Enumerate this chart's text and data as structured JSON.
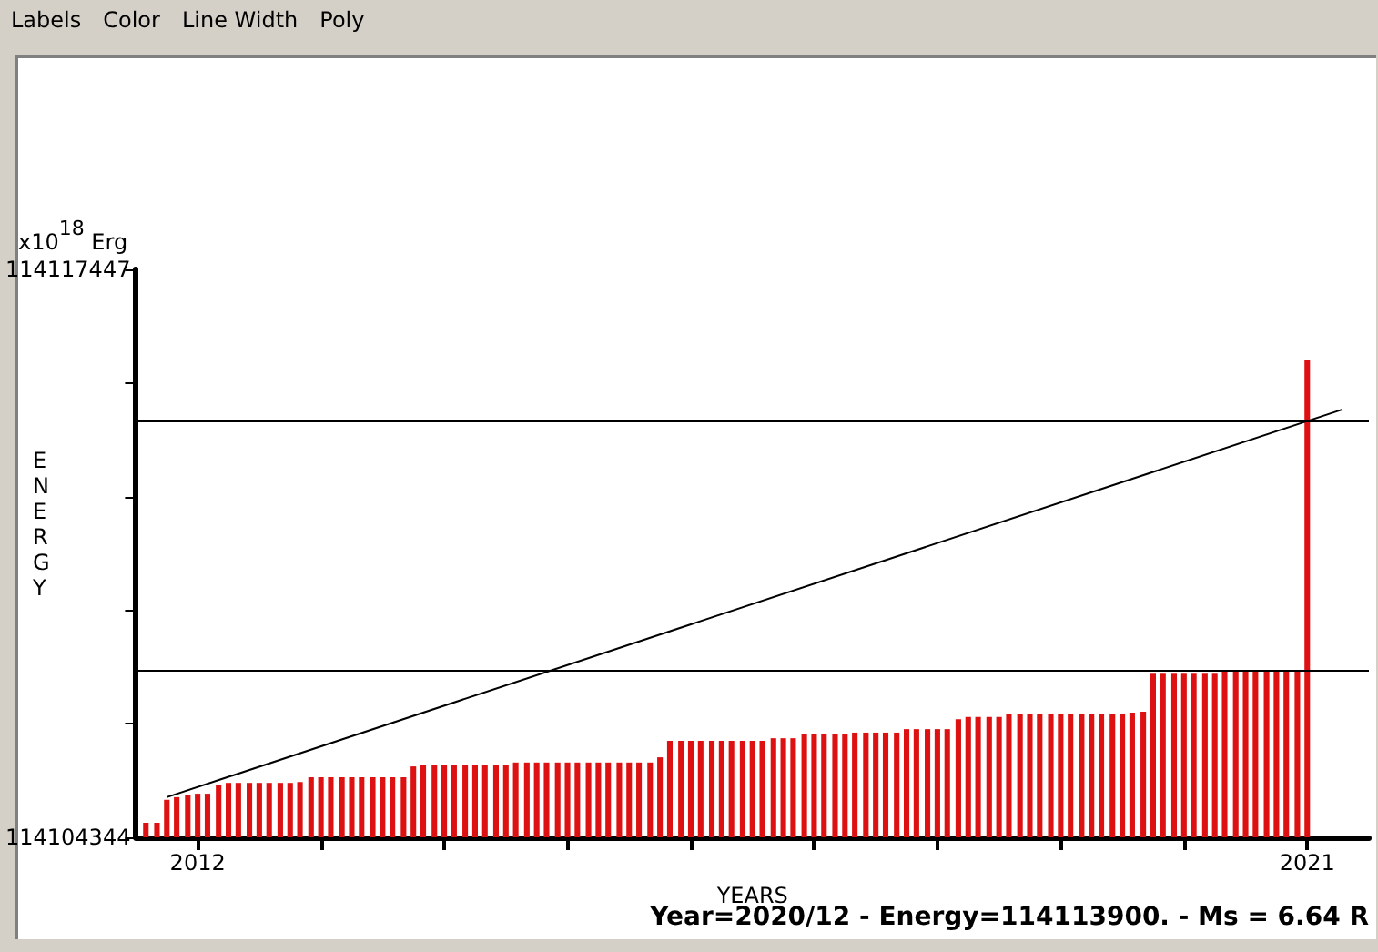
{
  "chart_data": {
    "type": "bar",
    "ylabel": "ENERGY",
    "xlabel": "YEARS",
    "annotations": [
      "x10$^{18}$ Erg",
      "Year=2020/12 - Energy=114113900. - Ms = 6.64 R",
      "Labels",
      "Color",
      "Line Width",
      "Poly"
    ],
    "xlim": [
      2011.5,
      2021.5
    ],
    "xticks": [
      2012,
      {
        "value": 2013,
        "label": null
      },
      {
        "value": 2014,
        "label": null
      },
      {
        "value": 2015,
        "label": null
      },
      {
        "value": 2016,
        "label": null
      },
      {
        "value": 2017,
        "label": null
      },
      {
        "value": 2018,
        "label": null
      },
      {
        "value": 2019,
        "label": null
      },
      {
        "value": 2020,
        "label": null
      },
      2021
    ],
    "ylim": [
      114104344,
      114117447
    ],
    "yticks": [
      114104344,
      {
        "value": 114106965,
        "label": null
      },
      {
        "value": 114109585,
        "label": null
      },
      {
        "value": 114112206,
        "label": null
      },
      {
        "value": 114114826,
        "label": null
      },
      114117447
    ],
    "grid": false,
    "ref_lines": [
      {
        "axis": "y",
        "value": 114108210,
        "color": "#000000"
      },
      {
        "axis": "y",
        "value": 114113960,
        "color": "#000000"
      }
    ],
    "series": [
      {
        "color": "#dd1111",
        "x": [
          2011.58,
          2011.67,
          2011.75,
          2011.83,
          2011.92,
          2012.0,
          2012.08,
          2012.17,
          2012.25,
          2012.33,
          2012.42,
          2012.5,
          2012.58,
          2012.67,
          2012.75,
          2012.83,
          2012.92,
          2013.0,
          2013.08,
          2013.17,
          2013.25,
          2013.33,
          2013.42,
          2013.5,
          2013.58,
          2013.67,
          2013.75,
          2013.83,
          2013.92,
          2014.0,
          2014.08,
          2014.17,
          2014.25,
          2014.33,
          2014.42,
          2014.5,
          2014.58,
          2014.67,
          2014.75,
          2014.83,
          2014.92,
          2015.0,
          2015.08,
          2015.17,
          2015.25,
          2015.33,
          2015.42,
          2015.5,
          2015.58,
          2015.67,
          2015.75,
          2015.83,
          2015.92,
          2016.0,
          2016.08,
          2016.17,
          2016.25,
          2016.33,
          2016.42,
          2016.5,
          2016.58,
          2016.67,
          2016.75,
          2016.83,
          2016.92,
          2017.0,
          2017.08,
          2017.17,
          2017.25,
          2017.33,
          2017.42,
          2017.5,
          2017.58,
          2017.67,
          2017.75,
          2017.83,
          2017.92,
          2018.0,
          2018.08,
          2018.17,
          2018.25,
          2018.33,
          2018.42,
          2018.5,
          2018.58,
          2018.67,
          2018.75,
          2018.83,
          2018.92,
          2019.0,
          2019.08,
          2019.17,
          2019.25,
          2019.33,
          2019.42,
          2019.5,
          2019.58,
          2019.67,
          2019.75,
          2019.83,
          2019.92,
          2020.0,
          2020.08,
          2020.17,
          2020.25,
          2020.33,
          2020.42,
          2020.5,
          2020.58,
          2020.67,
          2020.75,
          2020.83,
          2020.92,
          2021.0
        ],
        "values": [
          114104680,
          114104680,
          114105210,
          114105270,
          114105310,
          114105350,
          114105350,
          114105560,
          114105600,
          114105600,
          114105600,
          114105600,
          114105600,
          114105600,
          114105600,
          114105620,
          114105730,
          114105730,
          114105730,
          114105730,
          114105730,
          114105730,
          114105730,
          114105730,
          114105730,
          114105730,
          114105980,
          114106020,
          114106020,
          114106020,
          114106020,
          114106020,
          114106020,
          114106020,
          114106020,
          114106020,
          114106070,
          114106070,
          114106070,
          114106070,
          114106070,
          114106070,
          114106070,
          114106070,
          114106070,
          114106070,
          114106070,
          114106070,
          114106070,
          114106070,
          114106190,
          114106570,
          114106570,
          114106570,
          114106570,
          114106570,
          114106570,
          114106570,
          114106570,
          114106570,
          114106570,
          114106630,
          114106630,
          114106630,
          114106720,
          114106720,
          114106720,
          114106720,
          114106720,
          114106760,
          114106760,
          114106760,
          114106760,
          114106760,
          114106840,
          114106840,
          114106840,
          114106840,
          114106840,
          114107070,
          114107120,
          114107120,
          114107120,
          114107120,
          114107180,
          114107180,
          114107180,
          114107180,
          114107180,
          114107180,
          114107180,
          114107180,
          114107180,
          114107180,
          114107180,
          114107180,
          114107220,
          114107240,
          114108120,
          114108120,
          114108120,
          114108120,
          114108120,
          114108120,
          114108120,
          114108180,
          114108180,
          114108180,
          114108180,
          114108180,
          114108180,
          114108180,
          114108180,
          114115350
        ]
      },
      {
        "type": "line",
        "color": "#000000",
        "x": [
          2011.75,
          2021.28
        ],
        "values": [
          114105270,
          114114210
        ]
      }
    ]
  }
}
